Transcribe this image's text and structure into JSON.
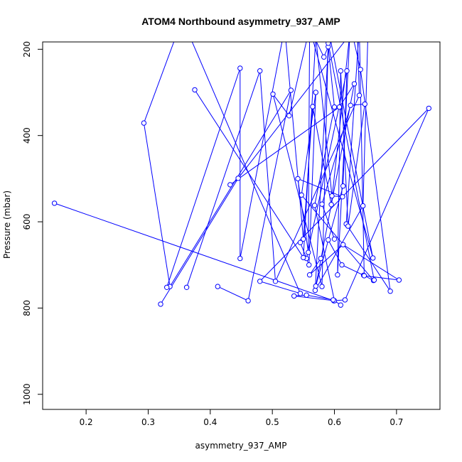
{
  "chart_data": {
    "type": "line",
    "title": "ATOM4 Northbound asymmetry_937_AMP",
    "xlabel": "asymmetry_937_AMP",
    "ylabel": "Pressure (mbar)",
    "xlim": [
      0.13,
      0.77
    ],
    "ylim": [
      1035,
      183
    ],
    "y_reversed": true,
    "grid": false,
    "line_color": "#0000ff",
    "x_ticks": [
      0.2,
      0.3,
      0.4,
      0.5,
      0.6,
      0.7
    ],
    "x_tick_labels": [
      "0.2",
      "0.3",
      "0.4",
      "0.5",
      "0.6",
      "0.7"
    ],
    "y_ticks": [
      200,
      400,
      600,
      800,
      1000
    ],
    "y_tick_labels": [
      "200",
      "400",
      "600",
      "800",
      "1000"
    ],
    "series": [
      {
        "x": [
          0.149,
          0.599,
          0.617,
          0.752,
          0.48,
          0.545,
          0.355,
          0.293,
          0.335,
          0.53,
          0.461,
          0.412
        ],
        "y": [
          557,
          783,
          781,
          337,
          738,
          766,
          130,
          371,
          750,
          295,
          783,
          750
        ]
      },
      {
        "x": [
          0.32,
          0.445,
          0.655,
          0.646,
          0.569,
          0.59,
          0.6,
          0.568,
          0.6,
          0.535,
          0.555,
          0.598,
          0.61
        ],
        "y": [
          791,
          499,
          110,
          563,
          759,
          194,
          334,
          562,
          783,
          772,
          770,
          781,
          793
        ]
      },
      {
        "x": [
          0.432,
          0.608,
          0.632,
          0.57,
          0.614,
          0.62,
          0.555,
          0.545,
          0.559,
          0.57,
          0.547,
          0.663,
          0.647,
          0.612,
          0.59
        ],
        "y": [
          514,
          334,
          280,
          749,
          517,
          250,
          685,
          648,
          700,
          300,
          538,
          736,
          724,
          700,
          642
        ]
      },
      {
        "x": [
          0.362,
          0.48,
          0.505,
          0.64,
          0.637,
          0.628,
          0.642,
          0.69,
          0.619,
          0.64,
          0.648,
          0.704,
          0.614,
          0.56,
          0.578
        ],
        "y": [
          752,
          250,
          738,
          307,
          160,
          160,
          247,
          761,
          605,
          150,
          725,
          735,
          653,
          723,
          685
        ]
      },
      {
        "x": [
          0.33,
          0.448,
          0.448,
          0.52,
          0.55,
          0.565,
          0.595,
          0.625,
          0.605,
          0.61,
          0.622,
          0.649,
          0.626,
          0.58,
          0.6
        ],
        "y": [
          752,
          244,
          685,
          150,
          640,
          333,
          560,
          160,
          723,
          250,
          610,
          327,
          330,
          559,
          640
        ]
      },
      {
        "x": [
          0.375,
          0.55,
          0.57,
          0.596,
          0.613,
          0.541,
          0.558,
          0.56,
          0.583,
          0.594,
          0.662,
          0.56,
          0.527,
          0.501,
          0.58,
          0.59,
          0.664
        ],
        "y": [
          294,
          683,
          170,
          540,
          542,
          500,
          671,
          150,
          218,
          180,
          684,
          150,
          354,
          304,
          750,
          186,
          735
        ]
      }
    ]
  }
}
